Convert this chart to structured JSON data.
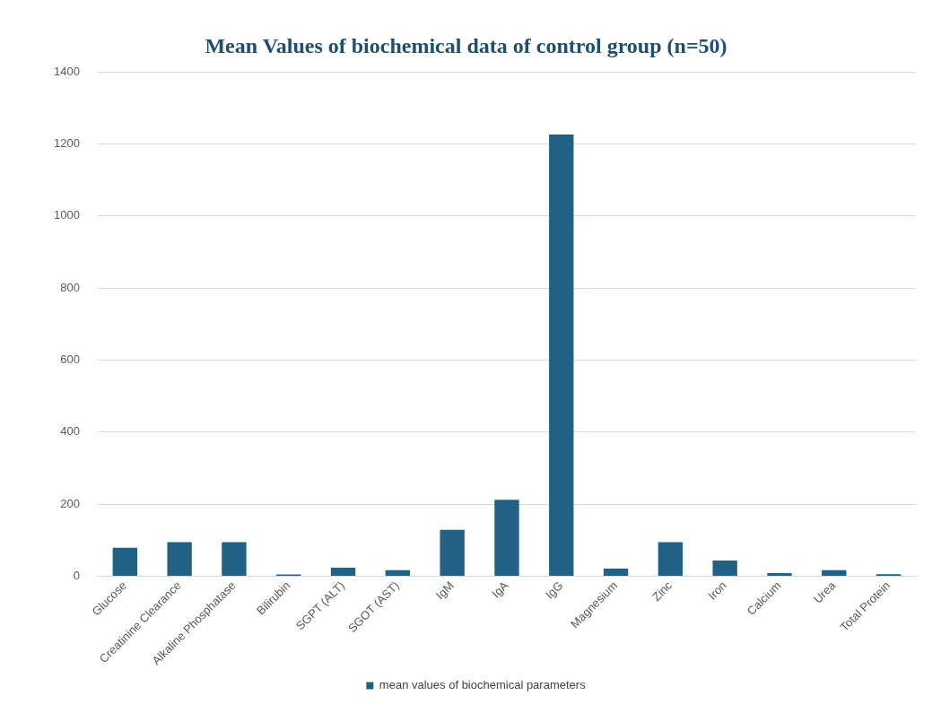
{
  "chart_data": {
    "type": "bar",
    "title": "Mean Values of biochemical data of control group (n=50)",
    "categories": [
      "Glucose",
      "Creatinine Clearance",
      "Alkaline Phosphatase",
      "Bilirubin",
      "SGPT (ALT)",
      "SGOT (AST)",
      "IgM",
      "IgA",
      "IgG",
      "Magnesium",
      "Zinc",
      "Iron",
      "Calcium",
      "Urea",
      "Total Protein"
    ],
    "series": [
      {
        "name": "mean values of biochemical parameters",
        "color": "#216184",
        "values": [
          79,
          95,
          95,
          5,
          24,
          17,
          129,
          212,
          1226,
          21,
          95,
          44,
          9,
          17,
          6
        ]
      }
    ],
    "ylim": [
      0,
      1400
    ],
    "yticks": [
      0,
      200,
      400,
      600,
      800,
      1000,
      1200,
      1400
    ],
    "grid": "y",
    "legend": "bottom"
  }
}
